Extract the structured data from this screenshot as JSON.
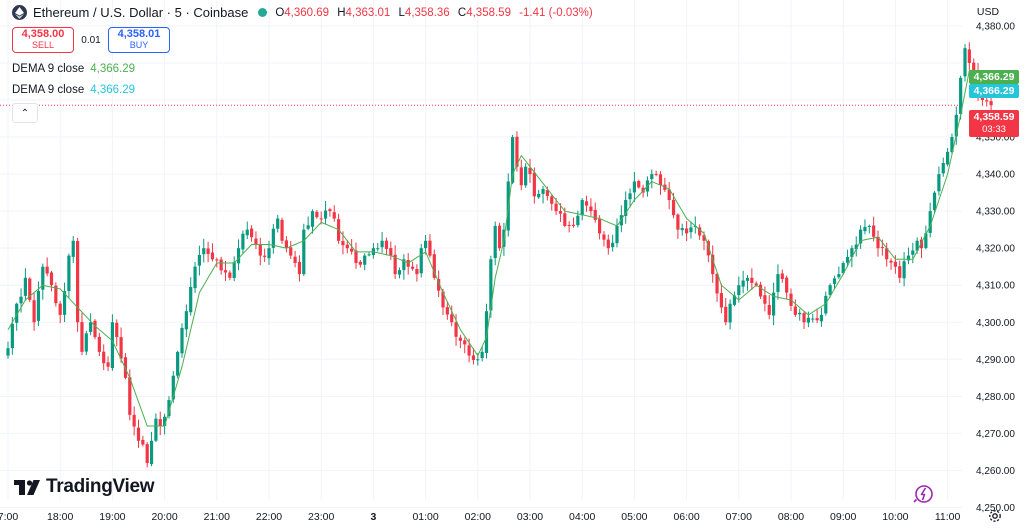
{
  "header": {
    "symbol": "Ethereum / U.S. Dollar · 5 · Coinbase",
    "ohlc": {
      "o_label": "O",
      "o": "4,360.69",
      "h_label": "H",
      "h": "4,363.01",
      "l_label": "L",
      "l": "4,358.36",
      "c_label": "C",
      "c": "4,358.59",
      "change": "-1.41 (-0.03%)"
    }
  },
  "trade": {
    "sell_price": "4,358.00",
    "sell_label": "SELL",
    "spread": "0.01",
    "buy_price": "4,358.01",
    "buy_label": "BUY"
  },
  "indicators": [
    {
      "name": "DEMA 9 close",
      "value": "4,366.29",
      "color": "#4caf50"
    },
    {
      "name": "DEMA 9 close",
      "value": "4,366.29",
      "color": "#26c6da"
    }
  ],
  "collapse_glyph": "⌃",
  "currency": "USD",
  "watermark": "TradingView",
  "price_tags": {
    "dema_green": "4,366.29",
    "dema_cyan": "4,366.29",
    "last_price": "4,358.59",
    "countdown": "03:33"
  },
  "colors": {
    "up": "#089981",
    "down": "#f23645",
    "grid": "#f0f3fa",
    "dema": "#4caf50",
    "price_line": "#f23645"
  },
  "chart_data": {
    "type": "candlestick",
    "x_start_time": "17:00",
    "candle_interval_minutes": 5,
    "ylim": [
      4245,
      4387
    ],
    "last_price": 4358.59,
    "y_ticks": [
      4250,
      4260,
      4270,
      4280,
      4290,
      4300,
      4310,
      4320,
      4330,
      4340,
      4350,
      4360,
      4370,
      4380
    ],
    "y_tick_labels": [
      "4,250.00",
      "4,260.00",
      "4,270.00",
      "4,280.00",
      "4,290.00",
      "4,300.00",
      "4,310.00",
      "4,320.00",
      "4,330.00",
      "4,340.00",
      "4,350.00",
      "",
      "",
      "4,380.00"
    ],
    "x_ticks": [
      {
        "label": "7:00",
        "time": "17:00"
      },
      {
        "label": "18:00",
        "time": "18:00"
      },
      {
        "label": "19:00",
        "time": "19:00"
      },
      {
        "label": "20:00",
        "time": "20:00"
      },
      {
        "label": "21:00",
        "time": "21:00"
      },
      {
        "label": "22:00",
        "time": "22:00"
      },
      {
        "label": "23:00",
        "time": "23:00"
      },
      {
        "label": "3",
        "time": "00:00"
      },
      {
        "label": "01:00",
        "time": "01:00"
      },
      {
        "label": "02:00",
        "time": "02:00"
      },
      {
        "label": "03:00",
        "time": "03:00"
      },
      {
        "label": "04:00",
        "time": "04:00"
      },
      {
        "label": "05:00",
        "time": "05:00"
      },
      {
        "label": "06:00",
        "time": "06:00"
      },
      {
        "label": "07:00",
        "time": "07:00"
      },
      {
        "label": "08:00",
        "time": "08:00"
      },
      {
        "label": "09:00",
        "time": "09:00"
      },
      {
        "label": "10:00",
        "time": "10:00"
      },
      {
        "label": "11:00",
        "time": "11:00"
      }
    ],
    "close_path": [
      [
        0,
        4293
      ],
      [
        2,
        4305
      ],
      [
        4,
        4312
      ],
      [
        6,
        4300
      ],
      [
        8,
        4315
      ],
      [
        10,
        4310
      ],
      [
        12,
        4302
      ],
      [
        14,
        4318
      ],
      [
        15,
        4322
      ],
      [
        16,
        4300
      ],
      [
        17,
        4292
      ],
      [
        19,
        4300
      ],
      [
        20,
        4296
      ],
      [
        21,
        4292
      ],
      [
        23,
        4288
      ],
      [
        24,
        4300
      ],
      [
        25,
        4296
      ],
      [
        27,
        4285
      ],
      [
        28,
        4275
      ],
      [
        30,
        4268
      ],
      [
        31,
        4267
      ],
      [
        32,
        4262
      ],
      [
        33,
        4268
      ],
      [
        34,
        4274
      ],
      [
        35,
        4272
      ],
      [
        37,
        4279
      ],
      [
        39,
        4292
      ],
      [
        41,
        4303
      ],
      [
        43,
        4315
      ],
      [
        45,
        4320
      ],
      [
        47,
        4317
      ],
      [
        49,
        4314
      ],
      [
        51,
        4312
      ],
      [
        53,
        4320
      ],
      [
        55,
        4325
      ],
      [
        57,
        4321
      ],
      [
        58,
        4318
      ],
      [
        60,
        4320
      ],
      [
        62,
        4328
      ],
      [
        63,
        4322
      ],
      [
        64,
        4320
      ],
      [
        65,
        4318
      ],
      [
        66,
        4316
      ],
      [
        67,
        4313
      ],
      [
        68,
        4325
      ],
      [
        70,
        4330
      ],
      [
        72,
        4328
      ],
      [
        74,
        4330
      ],
      [
        75,
        4328
      ],
      [
        76,
        4322
      ],
      [
        78,
        4320
      ],
      [
        80,
        4316
      ],
      [
        82,
        4318
      ],
      [
        84,
        4320
      ],
      [
        86,
        4322
      ],
      [
        88,
        4318
      ],
      [
        89,
        4313
      ],
      [
        91,
        4317
      ],
      [
        92,
        4315
      ],
      [
        94,
        4313
      ],
      [
        95,
        4320
      ],
      [
        96,
        4322
      ],
      [
        97,
        4318
      ],
      [
        98,
        4312
      ],
      [
        100,
        4304
      ],
      [
        102,
        4300
      ],
      [
        104,
        4295
      ],
      [
        106,
        4291
      ],
      [
        108,
        4290
      ],
      [
        109,
        4292
      ],
      [
        110,
        4303
      ],
      [
        111,
        4317
      ],
      [
        112,
        4326
      ],
      [
        113,
        4320
      ],
      [
        114,
        4325
      ],
      [
        115,
        4338
      ],
      [
        116,
        4350
      ],
      [
        117,
        4342
      ],
      [
        118,
        4337
      ],
      [
        119,
        4342
      ],
      [
        120,
        4340
      ],
      [
        121,
        4334
      ],
      [
        123,
        4336
      ],
      [
        125,
        4332
      ],
      [
        126,
        4330
      ],
      [
        128,
        4326
      ],
      [
        130,
        4326
      ],
      [
        132,
        4333
      ],
      [
        134,
        4330
      ],
      [
        136,
        4324
      ],
      [
        138,
        4320
      ],
      [
        140,
        4326
      ],
      [
        142,
        4333
      ],
      [
        144,
        4338
      ],
      [
        146,
        4335
      ],
      [
        148,
        4340
      ],
      [
        149,
        4340
      ],
      [
        150,
        4337
      ],
      [
        152,
        4333
      ],
      [
        154,
        4325
      ],
      [
        156,
        4324
      ],
      [
        158,
        4326
      ],
      [
        160,
        4322
      ],
      [
        162,
        4313
      ],
      [
        164,
        4304
      ],
      [
        165,
        4300
      ],
      [
        166,
        4305
      ],
      [
        168,
        4310
      ],
      [
        170,
        4312
      ],
      [
        172,
        4310
      ],
      [
        174,
        4305
      ],
      [
        175,
        4302
      ],
      [
        176,
        4308
      ],
      [
        177,
        4313
      ],
      [
        179,
        4308
      ],
      [
        181,
        4302
      ],
      [
        183,
        4300
      ],
      [
        185,
        4301
      ],
      [
        187,
        4302
      ],
      [
        189,
        4310
      ],
      [
        191,
        4313
      ],
      [
        192,
        4316
      ],
      [
        194,
        4320
      ],
      [
        196,
        4325
      ],
      [
        198,
        4326
      ],
      [
        200,
        4320
      ],
      [
        202,
        4317
      ],
      [
        204,
        4315
      ],
      [
        205,
        4312
      ],
      [
        207,
        4318
      ],
      [
        209,
        4322
      ],
      [
        210,
        4320
      ],
      [
        211,
        4324
      ],
      [
        212,
        4330
      ],
      [
        213,
        4335
      ],
      [
        214,
        4340
      ],
      [
        215,
        4343
      ],
      [
        216,
        4346
      ],
      [
        217,
        4350
      ],
      [
        218,
        4356
      ],
      [
        219,
        4366
      ],
      [
        220,
        4374
      ],
      [
        221,
        4370
      ],
      [
        222,
        4367
      ],
      [
        223,
        4362
      ],
      [
        224,
        4360
      ],
      [
        225,
        4359.6
      ],
      [
        226,
        4358.59
      ]
    ],
    "dema_path": [
      [
        0,
        4298
      ],
      [
        4,
        4306
      ],
      [
        8,
        4310
      ],
      [
        12,
        4309
      ],
      [
        16,
        4304
      ],
      [
        20,
        4299
      ],
      [
        24,
        4295
      ],
      [
        28,
        4285
      ],
      [
        32,
        4272
      ],
      [
        36,
        4272
      ],
      [
        40,
        4288
      ],
      [
        44,
        4308
      ],
      [
        48,
        4316
      ],
      [
        52,
        4316
      ],
      [
        56,
        4321
      ],
      [
        60,
        4321
      ],
      [
        64,
        4320
      ],
      [
        68,
        4322
      ],
      [
        72,
        4327
      ],
      [
        76,
        4325
      ],
      [
        80,
        4319
      ],
      [
        84,
        4319
      ],
      [
        88,
        4318
      ],
      [
        92,
        4316
      ],
      [
        96,
        4319
      ],
      [
        100,
        4308
      ],
      [
        104,
        4298
      ],
      [
        108,
        4291
      ],
      [
        110,
        4296
      ],
      [
        112,
        4312
      ],
      [
        114,
        4322
      ],
      [
        116,
        4340
      ],
      [
        118,
        4345
      ],
      [
        120,
        4342
      ],
      [
        124,
        4336
      ],
      [
        128,
        4330
      ],
      [
        132,
        4329
      ],
      [
        136,
        4328
      ],
      [
        140,
        4326
      ],
      [
        144,
        4333
      ],
      [
        148,
        4338
      ],
      [
        152,
        4336
      ],
      [
        156,
        4328
      ],
      [
        160,
        4324
      ],
      [
        164,
        4310
      ],
      [
        168,
        4306
      ],
      [
        172,
        4310
      ],
      [
        176,
        4307
      ],
      [
        180,
        4306
      ],
      [
        184,
        4302
      ],
      [
        188,
        4305
      ],
      [
        192,
        4313
      ],
      [
        196,
        4322
      ],
      [
        200,
        4323
      ],
      [
        204,
        4317
      ],
      [
        208,
        4317
      ],
      [
        212,
        4326
      ],
      [
        216,
        4340
      ],
      [
        219,
        4356
      ],
      [
        221,
        4368
      ],
      [
        223,
        4368
      ],
      [
        226,
        4363
      ]
    ]
  }
}
